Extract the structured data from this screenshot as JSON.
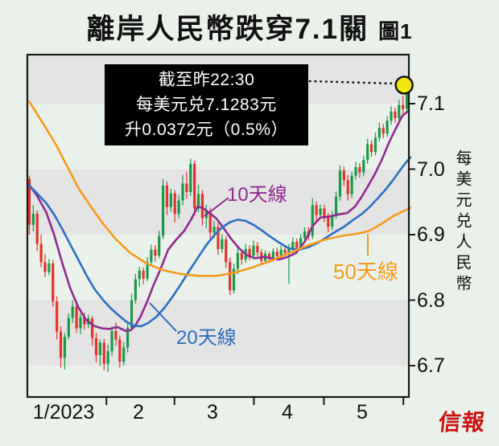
{
  "title": {
    "main": "離岸人民幣跌穿7.1關",
    "figure_tag": "圖1"
  },
  "callout": {
    "line1": "截至昨22:30",
    "line2": "每美元兑7.1283元",
    "line3": "升0.0372元（0.5%）"
  },
  "ma_labels": {
    "ma10": "10天線",
    "ma20": "20天線",
    "ma50": "50天線"
  },
  "y_axis": {
    "title": "每美元兑人民幣",
    "ticks": [
      7.1,
      7.0,
      6.9,
      6.8,
      6.7
    ],
    "labels": [
      "7.1",
      "7.0",
      "6.9",
      "6.8",
      "6.7"
    ]
  },
  "x_axis": {
    "labels": [
      "1/2023",
      "2",
      "3",
      "4",
      "5"
    ],
    "tick_days": [
      19.6,
      36.9,
      57.1,
      74.9,
      95.1
    ]
  },
  "logo": {
    "text": "信報"
  },
  "colors": {
    "up": "#189A4A",
    "down": "#E1342B",
    "ma10": "#8F2C90",
    "ma20": "#2E6FC2",
    "ma50": "#F89A1C",
    "band": "#E4E4E4",
    "marker": "#F2E40C",
    "axis": "#1a1a1a",
    "logo_red": "#CC1111"
  },
  "chart_data": {
    "type": "candlestick+line",
    "title": "離岸人民幣跌穿7.1關",
    "ylabel": "每美元兑人民幣",
    "ylim": [
      6.652,
      7.175
    ],
    "y_gridlines": [
      7.1,
      7.0,
      6.9,
      6.8,
      6.7
    ],
    "x_months": [
      "1/2023",
      "2",
      "3",
      "4",
      "5"
    ],
    "bands": [
      [
        7.1,
        7.175
      ],
      [
        6.9,
        7.0
      ],
      [
        6.7,
        6.8
      ]
    ],
    "latest": {
      "label": "截至昨22:30",
      "price": 7.1283,
      "change_text": "升0.0372元（0.5%）",
      "day": 95.3
    },
    "candles": [
      [
        6.985,
        6.99,
        6.9,
        6.915
      ],
      [
        6.915,
        6.945,
        6.905,
        6.932
      ],
      [
        6.932,
        6.937,
        6.875,
        6.886
      ],
      [
        6.886,
        6.9,
        6.85,
        6.858
      ],
      [
        6.858,
        6.87,
        6.835,
        6.843
      ],
      [
        6.843,
        6.863,
        6.838,
        6.856
      ],
      [
        6.856,
        6.861,
        6.79,
        6.798
      ],
      [
        6.798,
        6.806,
        6.74,
        6.752
      ],
      [
        6.752,
        6.76,
        6.697,
        6.712
      ],
      [
        6.712,
        6.75,
        6.694,
        6.744
      ],
      [
        6.744,
        6.78,
        6.74,
        6.773
      ],
      [
        6.773,
        6.8,
        6.765,
        6.79
      ],
      [
        6.79,
        6.795,
        6.75,
        6.757
      ],
      [
        6.757,
        6.78,
        6.748,
        6.774
      ],
      [
        6.774,
        6.781,
        6.755,
        6.763
      ],
      [
        6.763,
        6.778,
        6.757,
        6.772
      ],
      [
        6.772,
        6.776,
        6.73,
        6.742
      ],
      [
        6.742,
        6.75,
        6.705,
        6.716
      ],
      [
        6.716,
        6.74,
        6.7,
        6.735
      ],
      [
        6.735,
        6.741,
        6.693,
        6.703
      ],
      [
        6.703,
        6.732,
        6.69,
        6.722
      ],
      [
        6.722,
        6.76,
        6.715,
        6.753
      ],
      [
        6.753,
        6.766,
        6.73,
        6.74
      ],
      [
        6.74,
        6.746,
        6.697,
        6.706
      ],
      [
        6.706,
        6.736,
        6.7,
        6.728
      ],
      [
        6.728,
        6.766,
        6.72,
        6.758
      ],
      [
        6.758,
        6.81,
        6.754,
        6.8
      ],
      [
        6.8,
        6.84,
        6.795,
        6.832
      ],
      [
        6.832,
        6.851,
        6.82,
        6.845
      ],
      [
        6.845,
        6.85,
        6.824,
        6.833
      ],
      [
        6.833,
        6.866,
        6.829,
        6.858
      ],
      [
        6.858,
        6.885,
        6.852,
        6.877
      ],
      [
        6.877,
        6.884,
        6.859,
        6.868
      ],
      [
        6.868,
        6.906,
        6.864,
        6.898
      ],
      [
        6.898,
        6.985,
        6.893,
        6.975
      ],
      [
        6.975,
        6.981,
        6.93,
        6.942
      ],
      [
        6.942,
        6.97,
        6.935,
        6.963
      ],
      [
        6.963,
        6.968,
        6.919,
        6.932
      ],
      [
        6.932,
        6.961,
        6.925,
        6.952
      ],
      [
        6.952,
        6.991,
        6.945,
        6.978
      ],
      [
        6.978,
        6.996,
        6.955,
        6.965
      ],
      [
        6.965,
        7.016,
        6.959,
        7.008
      ],
      [
        7.008,
        7.013,
        6.929,
        6.94
      ],
      [
        6.94,
        6.976,
        6.934,
        6.962
      ],
      [
        6.962,
        6.968,
        6.914,
        6.925
      ],
      [
        6.925,
        6.946,
        6.91,
        6.936
      ],
      [
        6.936,
        6.941,
        6.894,
        6.903
      ],
      [
        6.903,
        6.921,
        6.895,
        6.912
      ],
      [
        6.912,
        6.918,
        6.869,
        6.878
      ],
      [
        6.878,
        6.901,
        6.872,
        6.893
      ],
      [
        6.893,
        6.898,
        6.849,
        6.858
      ],
      [
        6.858,
        6.865,
        6.808,
        6.815
      ],
      [
        6.815,
        6.856,
        6.81,
        6.848
      ],
      [
        6.848,
        6.881,
        6.84,
        6.872
      ],
      [
        6.872,
        6.878,
        6.854,
        6.862
      ],
      [
        6.862,
        6.886,
        6.857,
        6.878
      ],
      [
        6.878,
        6.884,
        6.861,
        6.868
      ],
      [
        6.868,
        6.891,
        6.862,
        6.883
      ],
      [
        6.883,
        6.889,
        6.867,
        6.873
      ],
      [
        6.873,
        6.878,
        6.854,
        6.86
      ],
      [
        6.86,
        6.876,
        6.855,
        6.871
      ],
      [
        6.871,
        6.874,
        6.857,
        6.863
      ],
      [
        6.863,
        6.879,
        6.859,
        6.874
      ],
      [
        6.874,
        6.88,
        6.861,
        6.867
      ],
      [
        6.867,
        6.883,
        6.862,
        6.877
      ],
      [
        6.877,
        6.884,
        6.867,
        6.872
      ],
      [
        6.872,
        6.886,
        6.825,
        6.879
      ],
      [
        6.879,
        6.896,
        6.872,
        6.889
      ],
      [
        6.889,
        6.894,
        6.874,
        6.88
      ],
      [
        6.88,
        6.901,
        6.876,
        6.895
      ],
      [
        6.895,
        6.911,
        6.889,
        6.905
      ],
      [
        6.905,
        6.911,
        6.892,
        6.898
      ],
      [
        6.898,
        6.956,
        6.893,
        6.945
      ],
      [
        6.945,
        6.951,
        6.921,
        6.93
      ],
      [
        6.93,
        6.946,
        6.924,
        6.94
      ],
      [
        6.94,
        6.946,
        6.919,
        6.928
      ],
      [
        6.928,
        6.933,
        6.904,
        6.912
      ],
      [
        6.912,
        6.936,
        6.907,
        6.93
      ],
      [
        6.93,
        6.966,
        6.924,
        6.958
      ],
      [
        6.958,
        7.006,
        6.952,
        6.998
      ],
      [
        6.998,
        7.004,
        6.974,
        6.983
      ],
      [
        6.983,
        6.991,
        6.952,
        6.962
      ],
      [
        6.962,
        6.996,
        6.956,
        6.99
      ],
      [
        6.99,
        7.011,
        6.984,
        7.003
      ],
      [
        7.003,
        7.009,
        6.987,
        6.995
      ],
      [
        6.995,
        7.021,
        6.989,
        7.014
      ],
      [
        7.014,
        7.046,
        7.008,
        7.038
      ],
      [
        7.038,
        7.044,
        7.019,
        7.026
      ],
      [
        7.026,
        7.056,
        7.021,
        7.048
      ],
      [
        7.048,
        7.071,
        7.042,
        7.063
      ],
      [
        7.063,
        7.069,
        7.047,
        7.054
      ],
      [
        7.054,
        7.081,
        7.049,
        7.074
      ],
      [
        7.074,
        7.096,
        7.068,
        7.088
      ],
      [
        7.088,
        7.094,
        7.071,
        7.078
      ],
      [
        7.078,
        7.106,
        7.073,
        7.098
      ],
      [
        7.098,
        7.112,
        7.084,
        7.092
      ],
      [
        7.092,
        7.131,
        7.087,
        7.1283
      ]
    ],
    "series": [
      {
        "name": "10天線",
        "color_key": "ma10",
        "points": [
          [
            0,
            6.976
          ],
          [
            2,
            6.959
          ],
          [
            4.3,
            6.934
          ],
          [
            6.3,
            6.9
          ],
          [
            8.4,
            6.856
          ],
          [
            10.4,
            6.818
          ],
          [
            12.4,
            6.79
          ],
          [
            14.3,
            6.771
          ],
          [
            16.3,
            6.761
          ],
          [
            18.4,
            6.757
          ],
          [
            20.4,
            6.756
          ],
          [
            22.4,
            6.759
          ],
          [
            24.5,
            6.753
          ],
          [
            25.7,
            6.754
          ],
          [
            26.8,
            6.76
          ],
          [
            28.3,
            6.775
          ],
          [
            29.9,
            6.797
          ],
          [
            31.5,
            6.822
          ],
          [
            33.4,
            6.848
          ],
          [
            35.3,
            6.877
          ],
          [
            37.3,
            6.892
          ],
          [
            39.4,
            6.906
          ],
          [
            41.2,
            6.924
          ],
          [
            42.8,
            6.943
          ],
          [
            44.3,
            6.94
          ],
          [
            46,
            6.932
          ],
          [
            47.5,
            6.925
          ],
          [
            49.4,
            6.91
          ],
          [
            51.4,
            6.893
          ],
          [
            53.5,
            6.878
          ],
          [
            55.5,
            6.868
          ],
          [
            57.5,
            6.864
          ],
          [
            59.6,
            6.866
          ],
          [
            61.5,
            6.864
          ],
          [
            63.5,
            6.862
          ],
          [
            65.7,
            6.866
          ],
          [
            67.8,
            6.872
          ],
          [
            70,
            6.889
          ],
          [
            72,
            6.913
          ],
          [
            74,
            6.926
          ],
          [
            76.5,
            6.928
          ],
          [
            78.8,
            6.931
          ],
          [
            80.8,
            6.933
          ],
          [
            82.8,
            6.943
          ],
          [
            84.3,
            6.956
          ],
          [
            86,
            6.973
          ],
          [
            87.9,
            6.993
          ],
          [
            89.6,
            7.014
          ],
          [
            91.4,
            7.04
          ],
          [
            93,
            7.06
          ],
          [
            94.8,
            7.081
          ],
          [
            96.2,
            7.088
          ]
        ]
      },
      {
        "name": "20天線",
        "color_key": "ma20",
        "points": [
          [
            0,
            6.975
          ],
          [
            2,
            6.963
          ],
          [
            4.3,
            6.948
          ],
          [
            6.5,
            6.929
          ],
          [
            8.5,
            6.907
          ],
          [
            10.6,
            6.883
          ],
          [
            12.7,
            6.859
          ],
          [
            14.7,
            6.836
          ],
          [
            16.7,
            6.816
          ],
          [
            18.8,
            6.8
          ],
          [
            20.8,
            6.787
          ],
          [
            22.9,
            6.776
          ],
          [
            24.7,
            6.767
          ],
          [
            26.5,
            6.761
          ],
          [
            28.4,
            6.76
          ],
          [
            30.2,
            6.765
          ],
          [
            32.2,
            6.774
          ],
          [
            34.3,
            6.788
          ],
          [
            36.5,
            6.806
          ],
          [
            38.6,
            6.825
          ],
          [
            40.8,
            6.846
          ],
          [
            43,
            6.866
          ],
          [
            45,
            6.884
          ],
          [
            47,
            6.899
          ],
          [
            49,
            6.911
          ],
          [
            51,
            6.919
          ],
          [
            53,
            6.923
          ],
          [
            55,
            6.921
          ],
          [
            57,
            6.915
          ],
          [
            59,
            6.907
          ],
          [
            61,
            6.898
          ],
          [
            63.5,
            6.888
          ],
          [
            66,
            6.879
          ],
          [
            68.5,
            6.877
          ],
          [
            71,
            6.881
          ],
          [
            73.5,
            6.888
          ],
          [
            75.9,
            6.897
          ],
          [
            78,
            6.905
          ],
          [
            80,
            6.912
          ],
          [
            82,
            6.921
          ],
          [
            84.4,
            6.931
          ],
          [
            86.5,
            6.942
          ],
          [
            88.5,
            6.955
          ],
          [
            90.6,
            6.969
          ],
          [
            92.7,
            6.985
          ],
          [
            94.7,
            7.002
          ],
          [
            96.3,
            7.014
          ],
          [
            96.9,
            7.018
          ]
        ]
      },
      {
        "name": "50天線",
        "color_key": "ma50",
        "points": [
          [
            0,
            7.103
          ],
          [
            2.2,
            7.082
          ],
          [
            4.3,
            7.062
          ],
          [
            7,
            7.035
          ],
          [
            10,
            7.0
          ],
          [
            12.4,
            6.972
          ],
          [
            15.5,
            6.944
          ],
          [
            18.6,
            6.918
          ],
          [
            22,
            6.893
          ],
          [
            25.7,
            6.872
          ],
          [
            29.8,
            6.856
          ],
          [
            33.9,
            6.846
          ],
          [
            38.4,
            6.84
          ],
          [
            43,
            6.837
          ],
          [
            47.6,
            6.837
          ],
          [
            52.2,
            6.842
          ],
          [
            56.7,
            6.85
          ],
          [
            61.4,
            6.86
          ],
          [
            66.1,
            6.872
          ],
          [
            70.6,
            6.883
          ],
          [
            74.9,
            6.892
          ],
          [
            79.4,
            6.898
          ],
          [
            83.9,
            6.902
          ],
          [
            86.5,
            6.906
          ],
          [
            89.4,
            6.916
          ],
          [
            92.7,
            6.929
          ],
          [
            95.5,
            6.937
          ],
          [
            96.9,
            6.941
          ]
        ]
      }
    ]
  }
}
